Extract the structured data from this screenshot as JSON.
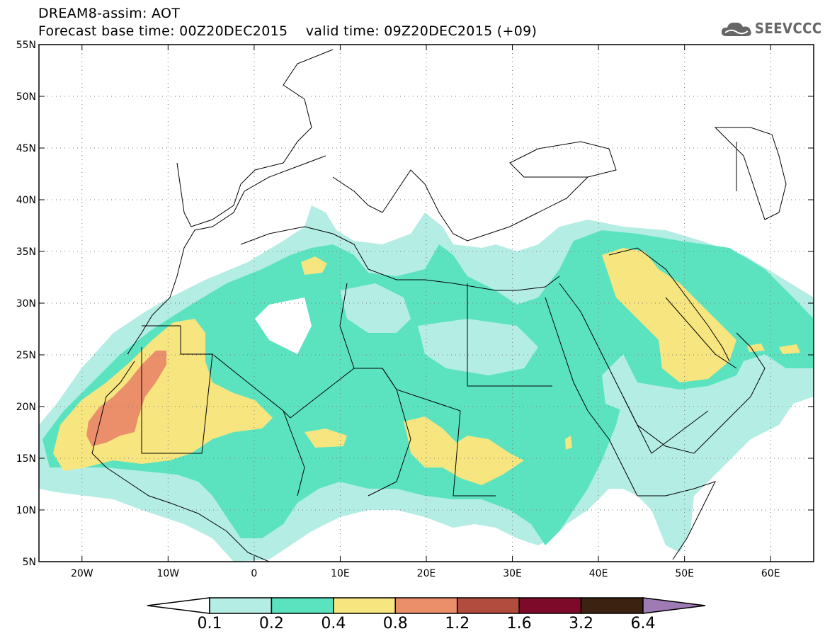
{
  "header": {
    "title": "DREAM8-assim: AOT",
    "base_time_label": "Forecast base time: 00Z20DEC2015",
    "valid_time_label": "valid time: 09Z20DEC2015 (+09)"
  },
  "logo": {
    "text": "SEEVCCC"
  },
  "map": {
    "lon_range": [
      -25,
      65
    ],
    "lat_range": [
      5,
      55
    ],
    "lon_ticks": [
      {
        "value": -20,
        "label": "20W"
      },
      {
        "value": -10,
        "label": "10W"
      },
      {
        "value": 0,
        "label": "0"
      },
      {
        "value": 10,
        "label": "10E"
      },
      {
        "value": 20,
        "label": "20E"
      },
      {
        "value": 30,
        "label": "30E"
      },
      {
        "value": 40,
        "label": "40E"
      },
      {
        "value": 50,
        "label": "50E"
      },
      {
        "value": 60,
        "label": "60E"
      }
    ],
    "lat_ticks": [
      {
        "value": 55,
        "label": "55N"
      },
      {
        "value": 50,
        "label": "50N"
      },
      {
        "value": 45,
        "label": "45N"
      },
      {
        "value": 40,
        "label": "40N"
      },
      {
        "value": 35,
        "label": "35N"
      },
      {
        "value": 30,
        "label": "30N"
      },
      {
        "value": 25,
        "label": "25N"
      },
      {
        "value": 20,
        "label": "20N"
      },
      {
        "value": 15,
        "label": "15N"
      },
      {
        "value": 10,
        "label": "10N"
      },
      {
        "value": 5,
        "label": "5N"
      }
    ],
    "gridlines": "dotted"
  },
  "colorbar": {
    "colors": [
      "#ffffff",
      "#b4ede4",
      "#5be3c0",
      "#f7e57f",
      "#eb8f6a",
      "#b24c3f",
      "#7c0a28",
      "#3c2210",
      "#9f7bb5"
    ],
    "labels": [
      "0.1",
      "0.2",
      "0.4",
      "0.8",
      "1.2",
      "1.6",
      "3.2",
      "6.4"
    ]
  }
}
